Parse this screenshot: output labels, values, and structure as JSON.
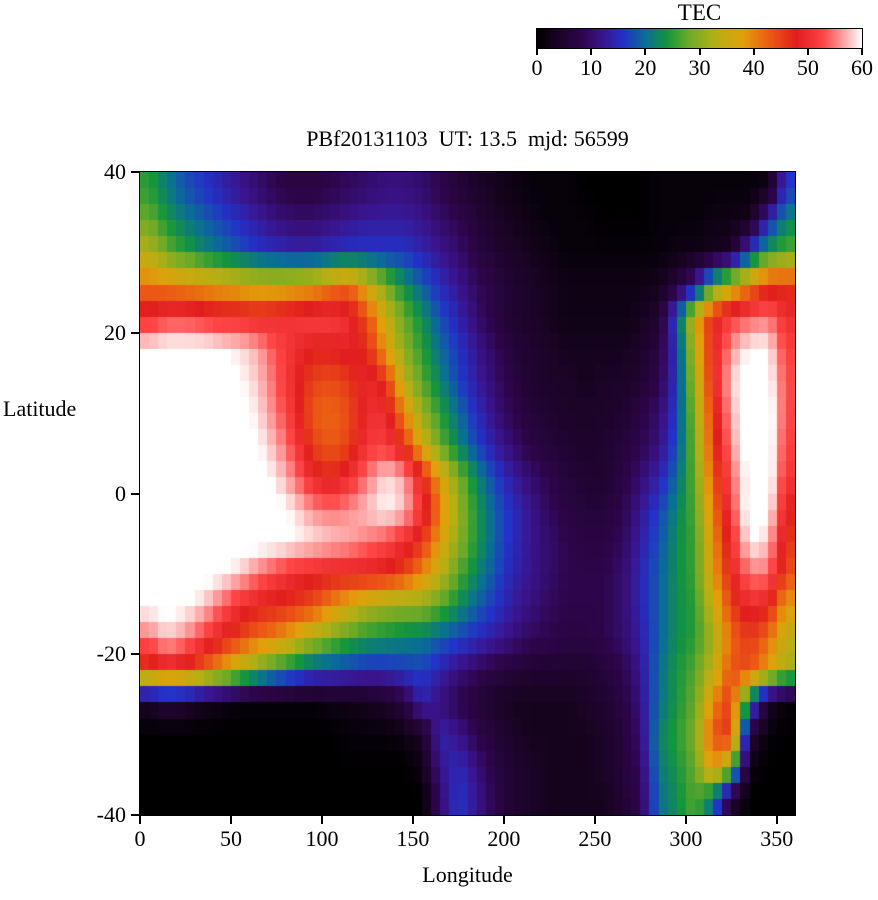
{
  "chart_data": {
    "type": "heatmap",
    "title": "PBf20131103  UT: 13.5  mjd: 56599",
    "xlabel": "Longitude",
    "ylabel": "Latitude",
    "colorbar_label": "TEC",
    "xlim": [
      0,
      360
    ],
    "ylim": [
      -40,
      40
    ],
    "zlim": [
      0,
      60
    ],
    "x_ticks": [
      0,
      50,
      100,
      150,
      200,
      250,
      300,
      350
    ],
    "y_ticks": [
      40,
      20,
      0,
      -20,
      -40
    ],
    "colorbar_ticks": [
      0,
      10,
      20,
      30,
      40,
      50,
      60
    ],
    "legend_position": "top-right-colorbar",
    "grid": {
      "cols": 36,
      "rows": 20,
      "lon_center_start": 5,
      "lon_step": 10,
      "lat_center_start": 38,
      "lat_step": -4,
      "order": "north_to_south",
      "units": "TEC units, values >= 60 saturate to white"
    },
    "values": [
      [
        25,
        21,
        18,
        16,
        14,
        12,
        10,
        8,
        7,
        7,
        8,
        9,
        10,
        11,
        11,
        10,
        8,
        6,
        4,
        3,
        2,
        1,
        1,
        1,
        0,
        0,
        0,
        0,
        1,
        1,
        1,
        1,
        1,
        1,
        2,
        16
      ],
      [
        28,
        24,
        21,
        19,
        17,
        15,
        13,
        11,
        10,
        10,
        11,
        12,
        13,
        13,
        13,
        12,
        10,
        8,
        6,
        4,
        3,
        2,
        1,
        1,
        1,
        0,
        0,
        0,
        1,
        1,
        1,
        2,
        2,
        3,
        14,
        22
      ],
      [
        33,
        28,
        25,
        22,
        20,
        18,
        16,
        15,
        14,
        14,
        15,
        16,
        16,
        16,
        16,
        14,
        12,
        10,
        7,
        5,
        4,
        3,
        2,
        1,
        1,
        1,
        1,
        1,
        1,
        2,
        2,
        3,
        4,
        16,
        24,
        27
      ],
      [
        41,
        40,
        39,
        38,
        37,
        36,
        35,
        35,
        36,
        37,
        40,
        42,
        36,
        29,
        23,
        19,
        15,
        12,
        9,
        7,
        5,
        4,
        3,
        2,
        2,
        2,
        2,
        2,
        3,
        6,
        12,
        26,
        34,
        40,
        46,
        46
      ],
      [
        50,
        52,
        52,
        51,
        50,
        50,
        49,
        50,
        51,
        52,
        52,
        50,
        44,
        35,
        28,
        23,
        18,
        14,
        10,
        7,
        5,
        4,
        3,
        2,
        2,
        2,
        2,
        3,
        5,
        18,
        36,
        48,
        52,
        54,
        55,
        50
      ],
      [
        60,
        61,
        61,
        61,
        60,
        59,
        57,
        53,
        50,
        48,
        48,
        49,
        47,
        38,
        30,
        25,
        20,
        16,
        12,
        9,
        6,
        5,
        4,
        3,
        3,
        3,
        3,
        4,
        7,
        16,
        34,
        48,
        56,
        60,
        60,
        52
      ],
      [
        61,
        62,
        62,
        62,
        61,
        60,
        58,
        54,
        49,
        45,
        44,
        46,
        50,
        46,
        34,
        27,
        22,
        17,
        13,
        10,
        7,
        5,
        4,
        4,
        3,
        4,
        4,
        5,
        8,
        16,
        32,
        48,
        58,
        62,
        61,
        53
      ],
      [
        62,
        62,
        62,
        62,
        62,
        61,
        59,
        55,
        50,
        43,
        42,
        44,
        50,
        50,
        40,
        31,
        25,
        20,
        15,
        11,
        8,
        6,
        5,
        4,
        4,
        4,
        5,
        7,
        10,
        17,
        30,
        46,
        57,
        62,
        62,
        53
      ],
      [
        62,
        62,
        62,
        62,
        62,
        61,
        60,
        57,
        52,
        45,
        43,
        45,
        51,
        52,
        46,
        36,
        28,
        22,
        17,
        13,
        10,
        7,
        6,
        5,
        4,
        5,
        6,
        8,
        11,
        18,
        29,
        45,
        56,
        62,
        62,
        52
      ],
      [
        62,
        62,
        62,
        62,
        62,
        62,
        61,
        59,
        55,
        49,
        47,
        50,
        55,
        59,
        57,
        48,
        38,
        29,
        22,
        17,
        13,
        10,
        8,
        6,
        5,
        5,
        7,
        10,
        14,
        20,
        28,
        43,
        54,
        61,
        62,
        51
      ],
      [
        62,
        62,
        62,
        62,
        62,
        62,
        62,
        61,
        59,
        56,
        55,
        56,
        58,
        60,
        58,
        51,
        41,
        31,
        24,
        19,
        15,
        12,
        9,
        7,
        6,
        6,
        8,
        12,
        17,
        22,
        27,
        41,
        52,
        62,
        61,
        48
      ],
      [
        62,
        62,
        62,
        62,
        62,
        62,
        61,
        61,
        60,
        59,
        58,
        57,
        55,
        53,
        50,
        46,
        38,
        30,
        24,
        19,
        15,
        12,
        10,
        8,
        7,
        7,
        9,
        13,
        18,
        23,
        26,
        39,
        50,
        60,
        58,
        46
      ],
      [
        62,
        62,
        62,
        61,
        60,
        58,
        55,
        52,
        50,
        49,
        48,
        48,
        48,
        47,
        45,
        40,
        34,
        27,
        22,
        18,
        14,
        12,
        10,
        8,
        8,
        8,
        10,
        14,
        19,
        23,
        26,
        38,
        48,
        55,
        55,
        44
      ],
      [
        60,
        61,
        60,
        58,
        54,
        50,
        48,
        47,
        46,
        44,
        40,
        36,
        33,
        31,
        30,
        30,
        27,
        23,
        19,
        16,
        13,
        11,
        9,
        8,
        8,
        8,
        10,
        14,
        19,
        23,
        25,
        35,
        45,
        50,
        48,
        38
      ],
      [
        55,
        58,
        56,
        52,
        48,
        45,
        42,
        40,
        36,
        32,
        29,
        26,
        24,
        23,
        22,
        21,
        19,
        17,
        15,
        13,
        11,
        9,
        8,
        7,
        7,
        8,
        10,
        13,
        19,
        23,
        25,
        32,
        42,
        46,
        42,
        34
      ],
      [
        44,
        48,
        46,
        42,
        38,
        33,
        28,
        24,
        21,
        18,
        17,
        16,
        15,
        15,
        16,
        17,
        14,
        11,
        9,
        7,
        6,
        5,
        5,
        5,
        5,
        6,
        8,
        12,
        20,
        24,
        27,
        34,
        44,
        44,
        38,
        32
      ],
      [
        4,
        6,
        5,
        3,
        2,
        1,
        1,
        1,
        1,
        1,
        2,
        2,
        3,
        4,
        7,
        14,
        11,
        8,
        6,
        4,
        3,
        3,
        3,
        3,
        4,
        5,
        7,
        11,
        20,
        24,
        28,
        40,
        46,
        20,
        4,
        1
      ],
      [
        0,
        0,
        0,
        0,
        0,
        0,
        0,
        0,
        0,
        0,
        0,
        1,
        1,
        1,
        2,
        4,
        14,
        12,
        8,
        6,
        4,
        3,
        3,
        3,
        3,
        4,
        6,
        10,
        22,
        25,
        29,
        44,
        46,
        6,
        1,
        0
      ],
      [
        0,
        0,
        0,
        0,
        0,
        0,
        0,
        0,
        0,
        0,
        0,
        0,
        0,
        0,
        0,
        2,
        12,
        15,
        11,
        7,
        5,
        4,
        3,
        3,
        3,
        4,
        6,
        9,
        21,
        24,
        28,
        40,
        30,
        2,
        0,
        0
      ],
      [
        0,
        0,
        0,
        0,
        0,
        0,
        0,
        0,
        0,
        0,
        0,
        0,
        0,
        0,
        0,
        0,
        10,
        16,
        12,
        8,
        5,
        4,
        3,
        3,
        3,
        3,
        5,
        8,
        20,
        23,
        27,
        20,
        5,
        0,
        0,
        0
      ]
    ],
    "palette_stops": [
      [
        0,
        "#000000"
      ],
      [
        4,
        "#1c0428"
      ],
      [
        8,
        "#2d054b"
      ],
      [
        12,
        "#3a148c"
      ],
      [
        16,
        "#2332c8"
      ],
      [
        20,
        "#0a6e96"
      ],
      [
        24,
        "#14963c"
      ],
      [
        28,
        "#6eaa28"
      ],
      [
        33,
        "#b4af14"
      ],
      [
        38,
        "#e1a00a"
      ],
      [
        43,
        "#eb5a14"
      ],
      [
        48,
        "#e11e1e"
      ],
      [
        53,
        "#ff4646"
      ],
      [
        57,
        "#ffaaaa"
      ],
      [
        60,
        "#ffffff"
      ]
    ]
  }
}
